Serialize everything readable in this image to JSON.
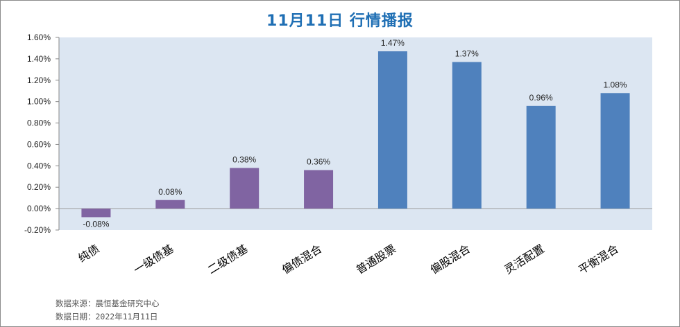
{
  "title": "11月11日  行情播报",
  "footer": {
    "source": "数据来源：晨恒基金研究中心",
    "date": "数据日期：2022年11月11日"
  },
  "colors": {
    "plot_bg": "#dce6f2",
    "purple": "#8064a2",
    "blue": "#4f81bd",
    "title": "#1f6fb4"
  },
  "chart_data": {
    "type": "bar",
    "title": "11月11日  行情播报",
    "xlabel": "",
    "ylabel": "",
    "categories": [
      "纯债",
      "一级债基",
      "二级债基",
      "偏债混合",
      "普通股票",
      "偏股混合",
      "灵活配置",
      "平衡混合"
    ],
    "values": [
      -0.08,
      0.08,
      0.38,
      0.36,
      1.47,
      1.37,
      0.96,
      1.08
    ],
    "value_labels": [
      "-0.08%",
      "0.08%",
      "0.38%",
      "0.36%",
      "1.47%",
      "1.37%",
      "0.96%",
      "1.08%"
    ],
    "bar_colors": [
      "#8064a2",
      "#8064a2",
      "#8064a2",
      "#8064a2",
      "#4f81bd",
      "#4f81bd",
      "#4f81bd",
      "#4f81bd"
    ],
    "ylim": [
      -0.2,
      1.6
    ],
    "yticks": [
      -0.2,
      0.0,
      0.2,
      0.4,
      0.6,
      0.8,
      1.0,
      1.2,
      1.4,
      1.6
    ],
    "ytick_labels": [
      "-0.20%",
      "0.00%",
      "0.20%",
      "0.40%",
      "0.60%",
      "0.80%",
      "1.00%",
      "1.20%",
      "1.40%",
      "1.60%"
    ],
    "unit": "%",
    "grid": false,
    "legend": "none"
  }
}
